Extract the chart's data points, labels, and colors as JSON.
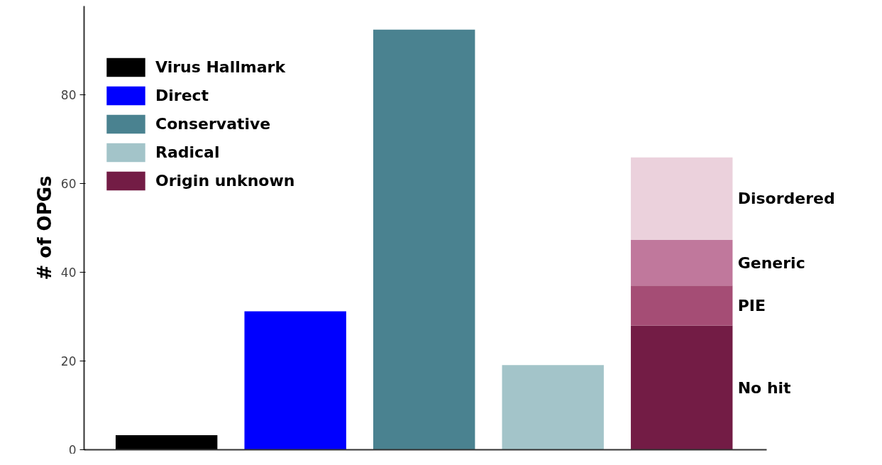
{
  "chart_data": {
    "type": "bar",
    "stacked": true,
    "ylabel": "# of OPGs",
    "categories": [
      null,
      null,
      null,
      null,
      null
    ],
    "series": [
      {
        "name": "Virus Hallmark",
        "color": "#000000",
        "values": [
          3.3,
          null,
          null,
          null,
          null
        ]
      },
      {
        "name": "Direct",
        "color": "#0000ff",
        "values": [
          null,
          31.2,
          null,
          null,
          null
        ]
      },
      {
        "name": "Conservative",
        "color": "#4a8290",
        "values": [
          null,
          null,
          94.7,
          null,
          null
        ]
      },
      {
        "name": "Radical",
        "color": "#a3c4c9",
        "values": [
          null,
          null,
          null,
          19.1,
          null
        ]
      },
      {
        "name": "No hit",
        "color": "#731c45",
        "values": [
          null,
          null,
          null,
          null,
          28.0
        ]
      },
      {
        "name": "PIE",
        "color": "#a54d75",
        "values": [
          null,
          null,
          null,
          null,
          9.0
        ]
      },
      {
        "name": "Generic",
        "color": "#c0789c",
        "values": [
          null,
          null,
          null,
          null,
          10.3
        ]
      },
      {
        "name": "Disordered",
        "color": "#ebd1dc",
        "values": [
          null,
          null,
          null,
          null,
          18.6
        ]
      }
    ],
    "annotations": [
      "Origin unknown"
    ],
    "ylim": [
      0,
      100
    ],
    "yticks": [
      0,
      20,
      40,
      60,
      80
    ],
    "grid": false,
    "legend": "top left",
    "tick_labels": "y"
  }
}
